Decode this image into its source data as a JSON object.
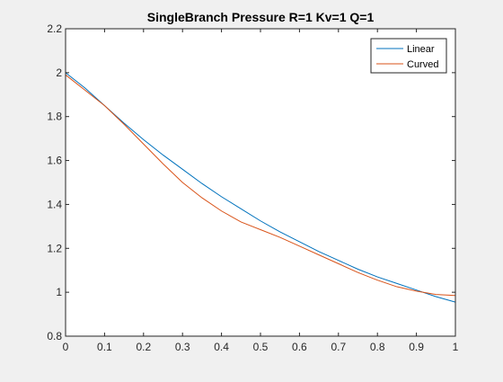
{
  "chart_data": {
    "type": "line",
    "title": "SingleBranch Pressure R=1 Kv=1 Q=1",
    "xlabel": "",
    "ylabel": "",
    "xlim": [
      0,
      1
    ],
    "ylim": [
      0.8,
      2.2
    ],
    "xticks": [
      0,
      0.1,
      0.2,
      0.3,
      0.4,
      0.5,
      0.6,
      0.7,
      0.8,
      0.9,
      1
    ],
    "xtick_labels": [
      "0",
      "0.1",
      "0.2",
      "0.3",
      "0.4",
      "0.5",
      "0.6",
      "0.7",
      "0.8",
      "0.9",
      "1"
    ],
    "yticks": [
      0.8,
      1,
      1.2,
      1.4,
      1.6,
      1.8,
      2,
      2.2
    ],
    "ytick_labels": [
      "0.8",
      "1",
      "1.2",
      "1.4",
      "1.6",
      "1.8",
      "2",
      "2.2"
    ],
    "grid": false,
    "legend_position": "top-right",
    "series": [
      {
        "name": "Linear",
        "color": "#0072BD",
        "x": [
          0,
          0.05,
          0.1,
          0.15,
          0.2,
          0.25,
          0.3,
          0.35,
          0.4,
          0.45,
          0.5,
          0.55,
          0.6,
          0.65,
          0.7,
          0.75,
          0.8,
          0.85,
          0.9,
          0.95,
          1
        ],
        "y": [
          2.0,
          1.93,
          1.85,
          1.77,
          1.695,
          1.625,
          1.56,
          1.495,
          1.435,
          1.38,
          1.325,
          1.275,
          1.23,
          1.185,
          1.145,
          1.105,
          1.07,
          1.04,
          1.01,
          0.98,
          0.955
        ]
      },
      {
        "name": "Curved",
        "color": "#D95319",
        "x": [
          0,
          0.05,
          0.1,
          0.15,
          0.2,
          0.25,
          0.3,
          0.35,
          0.4,
          0.45,
          0.5,
          0.55,
          0.6,
          0.65,
          0.7,
          0.75,
          0.8,
          0.85,
          0.9,
          0.95,
          1
        ],
        "y": [
          1.99,
          1.92,
          1.85,
          1.765,
          1.675,
          1.585,
          1.5,
          1.43,
          1.37,
          1.32,
          1.285,
          1.25,
          1.21,
          1.17,
          1.13,
          1.09,
          1.055,
          1.025,
          1.005,
          0.99,
          0.985
        ]
      }
    ]
  }
}
